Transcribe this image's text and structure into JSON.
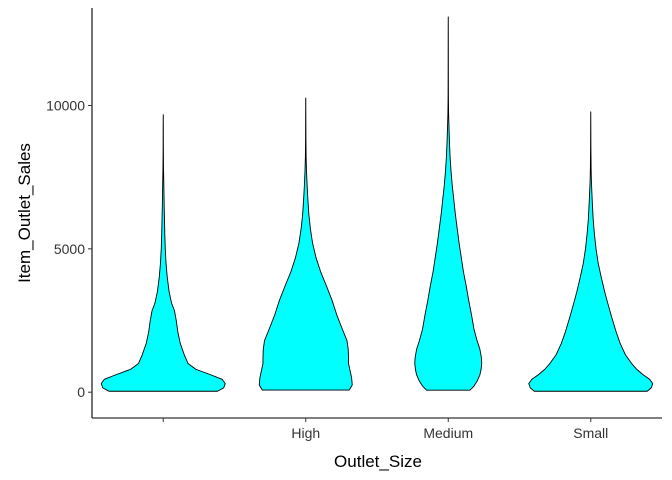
{
  "chart_data": {
    "type": "violin",
    "title": "",
    "xlabel": "Outlet_Size",
    "ylabel": "Item_Outlet_Sales",
    "categories": [
      "",
      "High",
      "Medium",
      "Small"
    ],
    "ylim": [
      -900,
      13400
    ],
    "yticks": [
      0,
      5000,
      10000
    ],
    "ytick_labels": [
      "0",
      "5000",
      "10000"
    ],
    "fill_color": "#00FFFF",
    "stroke_color": "#000000",
    "grid": false,
    "legend": "none",
    "violins": [
      {
        "category": "",
        "min": 33,
        "max": 9680,
        "profile": [
          [
            33,
            1.75
          ],
          [
            150,
            1.95
          ],
          [
            300,
            2.0
          ],
          [
            450,
            1.9
          ],
          [
            600,
            1.55
          ],
          [
            800,
            1.05
          ],
          [
            1000,
            0.8
          ],
          [
            1300,
            0.68
          ],
          [
            1700,
            0.55
          ],
          [
            2100,
            0.47
          ],
          [
            2500,
            0.42
          ],
          [
            2850,
            0.36
          ],
          [
            3100,
            0.27
          ],
          [
            3500,
            0.19
          ],
          [
            4000,
            0.13
          ],
          [
            4500,
            0.09
          ],
          [
            5000,
            0.065
          ],
          [
            5500,
            0.05
          ],
          [
            6000,
            0.04
          ],
          [
            6500,
            0.03
          ],
          [
            7000,
            0.022
          ],
          [
            7400,
            0.016
          ],
          [
            7800,
            0.009
          ],
          [
            8200,
            0.006
          ],
          [
            8600,
            0.004
          ],
          [
            9200,
            0.003
          ],
          [
            9680,
            0.001
          ]
        ]
      },
      {
        "category": "High",
        "min": 73,
        "max": 10260,
        "profile": [
          [
            73,
            1.4
          ],
          [
            250,
            1.5
          ],
          [
            500,
            1.48
          ],
          [
            800,
            1.42
          ],
          [
            1000,
            1.38
          ],
          [
            1200,
            1.38
          ],
          [
            1500,
            1.37
          ],
          [
            1800,
            1.33
          ],
          [
            2200,
            1.18
          ],
          [
            2700,
            1.0
          ],
          [
            3200,
            0.85
          ],
          [
            3700,
            0.67
          ],
          [
            4200,
            0.48
          ],
          [
            4700,
            0.33
          ],
          [
            5200,
            0.22
          ],
          [
            5700,
            0.15
          ],
          [
            6200,
            0.1
          ],
          [
            6700,
            0.07
          ],
          [
            7200,
            0.045
          ],
          [
            7700,
            0.025
          ],
          [
            8200,
            0.012
          ],
          [
            8800,
            0.006
          ],
          [
            9500,
            0.004
          ],
          [
            10260,
            0.001
          ]
        ]
      },
      {
        "category": "Medium",
        "min": 69,
        "max": 13087,
        "profile": [
          [
            69,
            0.7
          ],
          [
            200,
            0.82
          ],
          [
            400,
            0.94
          ],
          [
            600,
            1.02
          ],
          [
            800,
            1.06
          ],
          [
            1000,
            1.08
          ],
          [
            1200,
            1.07
          ],
          [
            1500,
            1.02
          ],
          [
            1800,
            0.93
          ],
          [
            2200,
            0.83
          ],
          [
            2700,
            0.75
          ],
          [
            3200,
            0.66
          ],
          [
            3700,
            0.58
          ],
          [
            4200,
            0.49
          ],
          [
            4700,
            0.42
          ],
          [
            5200,
            0.35
          ],
          [
            5700,
            0.29
          ],
          [
            6200,
            0.23
          ],
          [
            6700,
            0.18
          ],
          [
            7200,
            0.13
          ],
          [
            7700,
            0.09
          ],
          [
            8200,
            0.06
          ],
          [
            8700,
            0.04
          ],
          [
            9200,
            0.025
          ],
          [
            9700,
            0.012
          ],
          [
            10200,
            0.006
          ],
          [
            11000,
            0.004
          ],
          [
            12000,
            0.003
          ],
          [
            13087,
            0.001
          ]
        ]
      },
      {
        "category": "Small",
        "min": 33,
        "max": 9780,
        "profile": [
          [
            33,
            1.82
          ],
          [
            150,
            1.95
          ],
          [
            300,
            2.0
          ],
          [
            450,
            1.9
          ],
          [
            600,
            1.7
          ],
          [
            800,
            1.48
          ],
          [
            1000,
            1.32
          ],
          [
            1300,
            1.12
          ],
          [
            1700,
            0.95
          ],
          [
            2100,
            0.82
          ],
          [
            2600,
            0.68
          ],
          [
            3100,
            0.55
          ],
          [
            3500,
            0.45
          ],
          [
            4000,
            0.34
          ],
          [
            4500,
            0.24
          ],
          [
            5000,
            0.17
          ],
          [
            5500,
            0.12
          ],
          [
            6000,
            0.08
          ],
          [
            6500,
            0.055
          ],
          [
            7000,
            0.035
          ],
          [
            7400,
            0.02
          ],
          [
            7800,
            0.012
          ],
          [
            8200,
            0.008
          ],
          [
            8600,
            0.005
          ],
          [
            9200,
            0.003
          ],
          [
            9780,
            0.001
          ]
        ]
      }
    ]
  }
}
